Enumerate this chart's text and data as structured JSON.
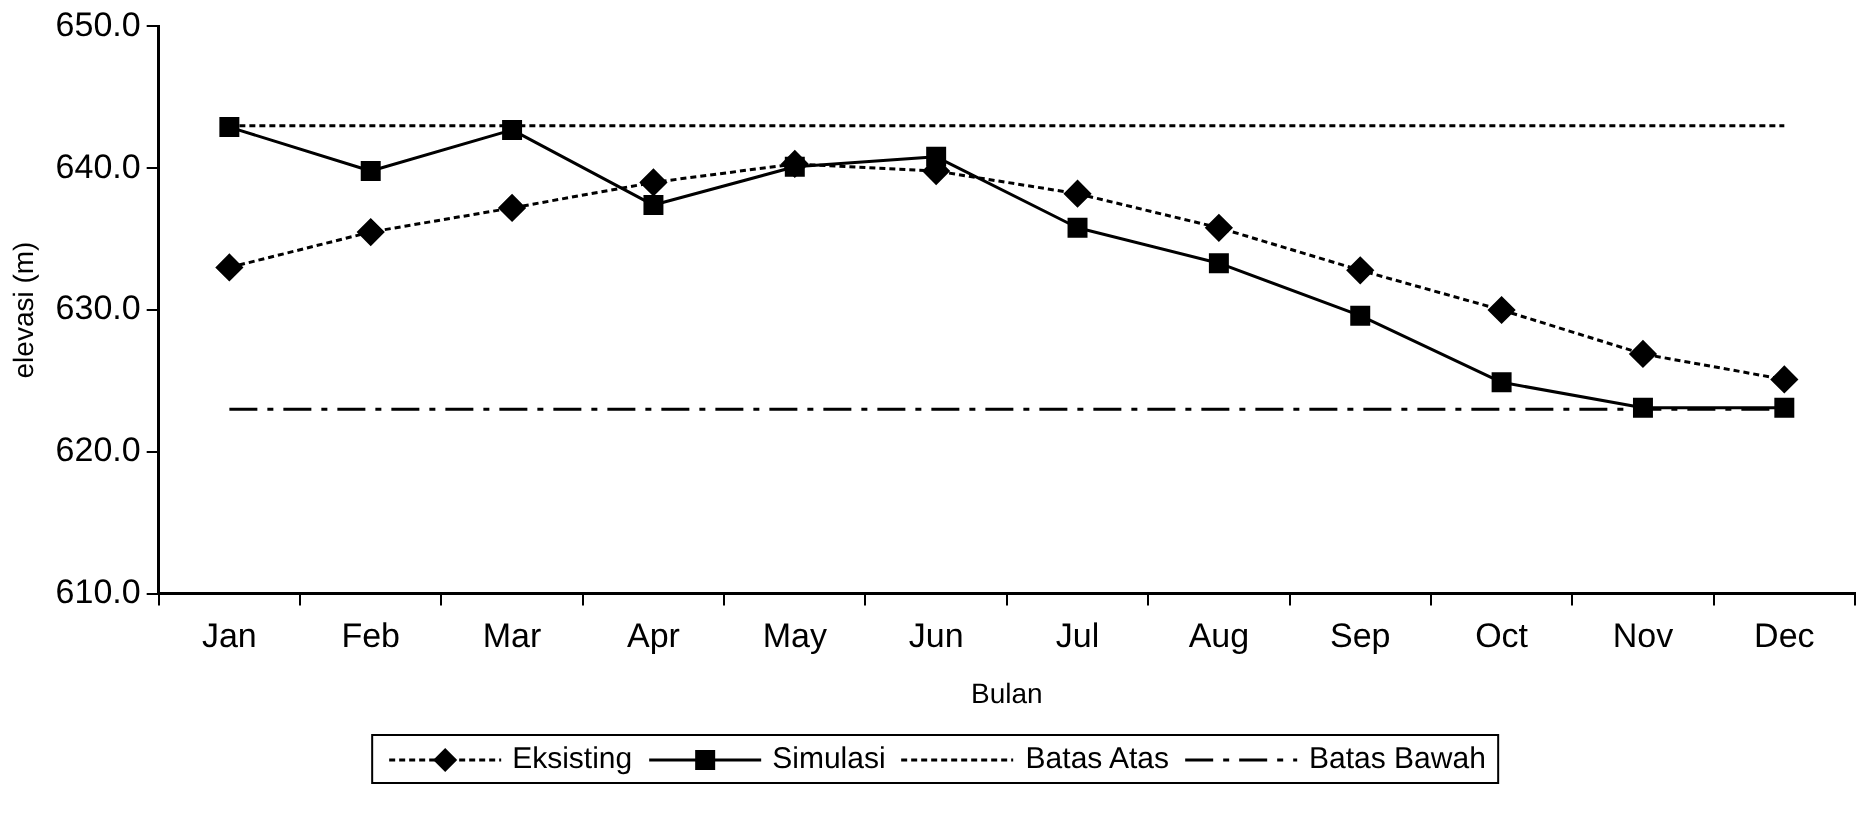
{
  "chart_data": {
    "type": "line",
    "xlabel": "Bulan",
    "ylabel": "elevasi (m)",
    "categories": [
      "Jan",
      "Feb",
      "Mar",
      "Apr",
      "May",
      "Jun",
      "Jul",
      "Aug",
      "Sep",
      "Oct",
      "Nov",
      "Dec"
    ],
    "ylim": [
      610,
      650
    ],
    "yticks": [
      {
        "value": 610,
        "label": "610.0"
      },
      {
        "value": 620,
        "label": "620.0"
      },
      {
        "value": 630,
        "label": "630.0"
      },
      {
        "value": 640,
        "label": "640.0"
      },
      {
        "value": 650,
        "label": "650.0"
      }
    ],
    "grid": false,
    "legend": "bottom",
    "series": [
      {
        "name": "Eksisting",
        "color": "#000000",
        "marker": "diamond",
        "line_style": "dotted",
        "values": [
          633.0,
          635.5,
          637.2,
          639.0,
          640.3,
          639.8,
          638.2,
          635.8,
          632.8,
          630.0,
          626.9,
          625.1
        ]
      },
      {
        "name": "Simulasi",
        "color": "#000000",
        "marker": "square",
        "line_style": "solid",
        "values": [
          642.9,
          639.8,
          642.7,
          637.4,
          640.1,
          640.8,
          635.8,
          633.3,
          629.6,
          624.9,
          623.1,
          623.1
        ]
      },
      {
        "name": "Batas Atas",
        "color": "#000000",
        "marker": "none",
        "line_style": "dotted",
        "values": [
          643,
          643,
          643,
          643,
          643,
          643,
          643,
          643,
          643,
          643,
          643,
          643
        ]
      },
      {
        "name": "Batas Bawah",
        "color": "#000000",
        "marker": "none",
        "line_style": "dashed",
        "values": [
          623,
          623,
          623,
          623,
          623,
          623,
          623,
          623,
          623,
          623,
          623,
          623
        ]
      }
    ]
  }
}
